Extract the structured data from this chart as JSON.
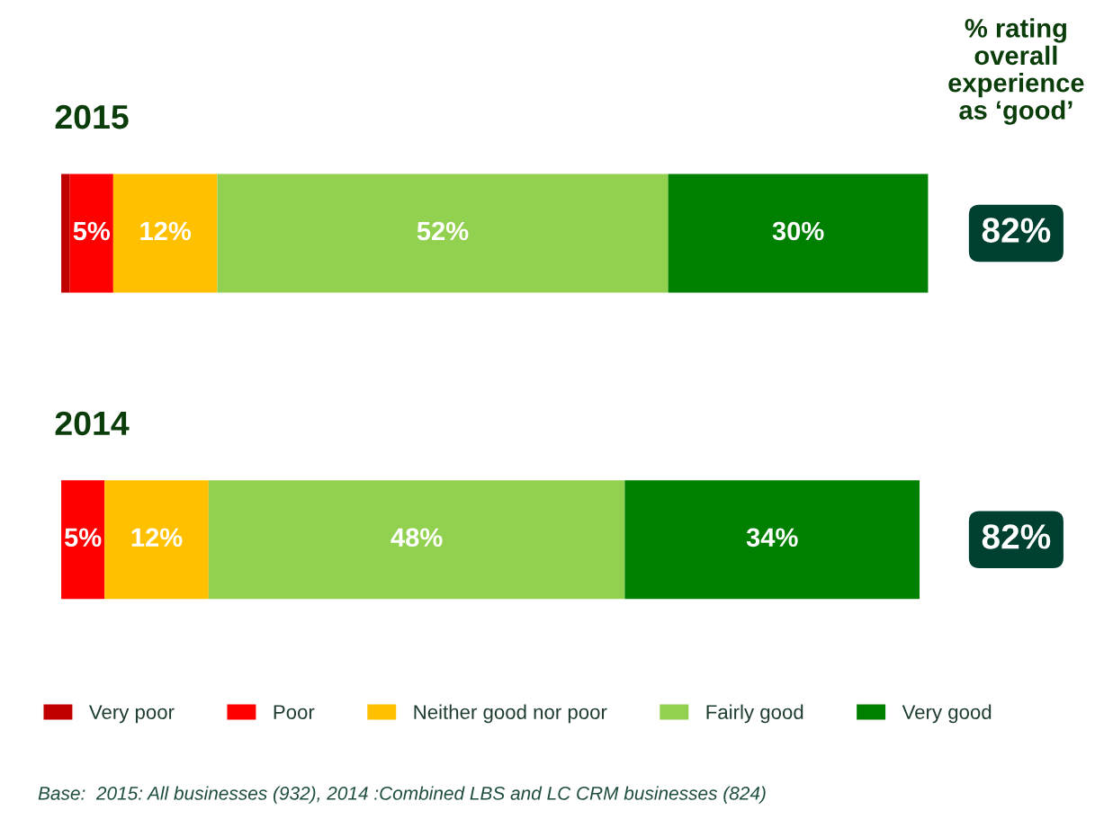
{
  "chart_data": {
    "type": "bar",
    "orientation": "horizontal",
    "stacked": true,
    "data_labels": false,
    "categories": [
      "2015",
      "2014"
    ],
    "series": [
      {
        "name": "Very poor",
        "color": "#c00000",
        "values": [
          1,
          0
        ],
        "value_labels": [
          null,
          null
        ]
      },
      {
        "name": "Poor",
        "color": "#ff0000",
        "values": [
          5,
          5
        ],
        "value_labels": [
          "5%",
          "5%"
        ]
      },
      {
        "name": "Neither good nor poor",
        "color": "#ffc000",
        "values": [
          12,
          12
        ],
        "value_labels": [
          "12%",
          "12%"
        ]
      },
      {
        "name": "Fairly good",
        "color": "#92d050",
        "values": [
          52,
          48
        ],
        "value_labels": [
          "52%",
          "48%"
        ]
      },
      {
        "name": "Very good",
        "color": "#008000",
        "values": [
          30,
          34
        ],
        "value_labels": [
          "30%",
          "34%"
        ]
      }
    ],
    "legend": "bottom",
    "annotations": [
      "% rating\noverall\nexperience\nas ‘good’",
      "82%",
      "82%",
      "Base:  2015: All businesses (932), 2014 :Combined LBS and LC CRM businesses (824)"
    ]
  }
}
